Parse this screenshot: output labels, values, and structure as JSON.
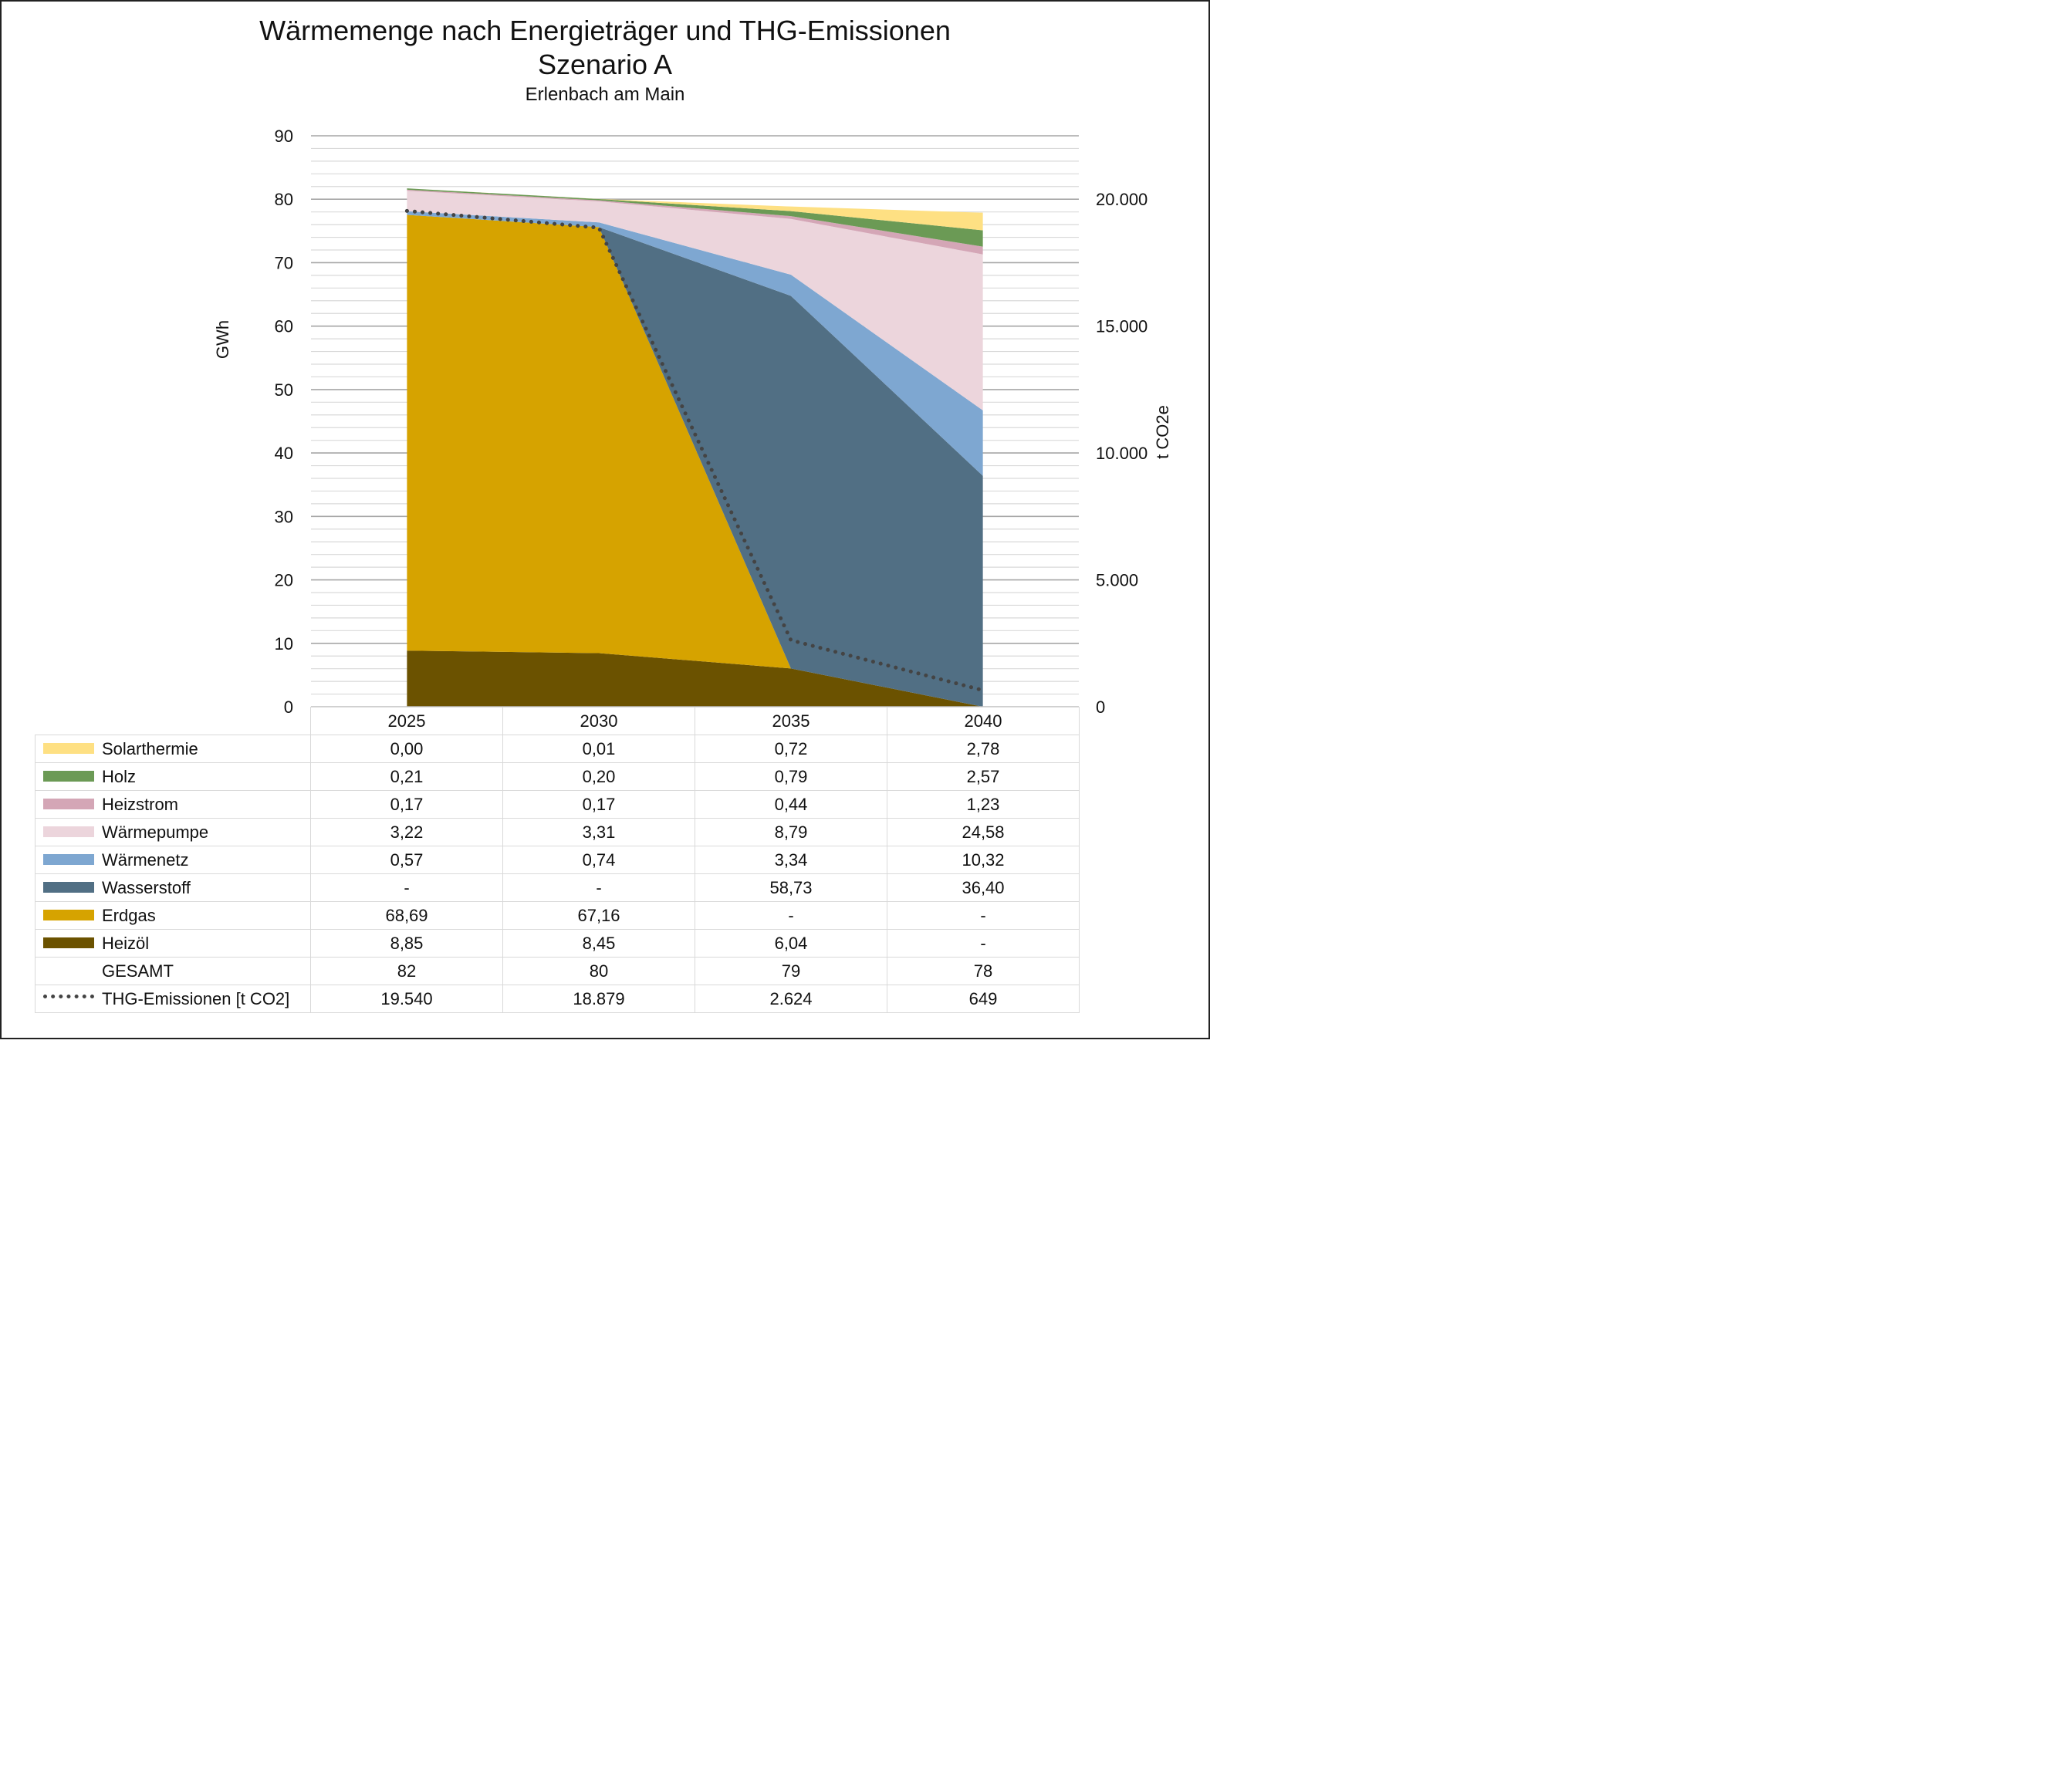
{
  "title": "Wärmemenge nach Energieträger und THG-Emissionen",
  "subtitle": "Szenario A",
  "location": "Erlenbach am Main",
  "chart_data": {
    "type": "area",
    "stacked": true,
    "categories": [
      "2025",
      "2030",
      "2035",
      "2040"
    ],
    "ylabel": "GWh",
    "ylim": [
      0,
      90
    ],
    "yticks": [
      "0",
      "10",
      "20",
      "30",
      "40",
      "50",
      "60",
      "70",
      "80",
      "90"
    ],
    "y2label": "t CO2e",
    "y2lim": [
      0,
      22500
    ],
    "y2ticks": [
      {
        "value": 0,
        "label": "0"
      },
      {
        "value": 5000,
        "label": "5.000"
      },
      {
        "value": 10000,
        "label": "10.000"
      },
      {
        "value": 15000,
        "label": "15.000"
      },
      {
        "value": 20000,
        "label": "20.000"
      }
    ],
    "grid": true,
    "legend": "data-table",
    "series": [
      {
        "name": "Solarthermie",
        "color": "#fee083",
        "values": [
          0.0,
          0.01,
          0.72,
          2.78
        ],
        "labels": [
          "0,00",
          "0,01",
          "0,72",
          "2,78"
        ]
      },
      {
        "name": "Holz",
        "color": "#6b9a55",
        "values": [
          0.21,
          0.2,
          0.79,
          2.57
        ],
        "labels": [
          "0,21",
          "0,20",
          "0,79",
          "2,57"
        ]
      },
      {
        "name": "Heizstrom",
        "color": "#d4a6b6",
        "values": [
          0.17,
          0.17,
          0.44,
          1.23
        ],
        "labels": [
          "0,17",
          "0,17",
          "0,44",
          "1,23"
        ]
      },
      {
        "name": "Wärmepumpe",
        "color": "#ecd5dc",
        "values": [
          3.22,
          3.31,
          8.79,
          24.58
        ],
        "labels": [
          "3,22",
          "3,31",
          "8,79",
          "24,58"
        ]
      },
      {
        "name": "Wärmenetz",
        "color": "#7ea7d1",
        "values": [
          0.57,
          0.74,
          3.34,
          10.32
        ],
        "labels": [
          "0,57",
          "0,74",
          "3,34",
          "10,32"
        ]
      },
      {
        "name": "Wasserstoff",
        "color": "#516f84",
        "values": [
          0,
          0,
          58.73,
          36.4
        ],
        "labels": [
          "-",
          "-",
          "58,73",
          "36,40"
        ]
      },
      {
        "name": "Erdgas",
        "color": "#d6a300",
        "values": [
          68.69,
          67.16,
          0,
          0
        ],
        "labels": [
          "68,69",
          "67,16",
          "-",
          "-"
        ]
      },
      {
        "name": "Heizöl",
        "color": "#6b5200",
        "values": [
          8.85,
          8.45,
          6.04,
          0
        ],
        "labels": [
          "8,85",
          "8,45",
          "6,04",
          "-"
        ]
      }
    ],
    "total": {
      "name": "GESAMT",
      "values": [
        82,
        80,
        79,
        78
      ],
      "labels": [
        "82",
        "80",
        "79",
        "78"
      ]
    },
    "emissions": {
      "name": "THG-Emissionen [t CO2]",
      "axis": "right",
      "color": "#444444",
      "values": [
        19540,
        18879,
        2624,
        649
      ],
      "labels": [
        "19.540",
        "18.879",
        "2.624",
        "649"
      ]
    }
  }
}
